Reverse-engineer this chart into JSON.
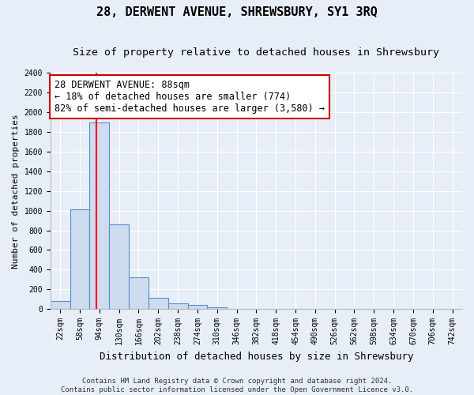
{
  "title": "28, DERWENT AVENUE, SHREWSBURY, SY1 3RQ",
  "subtitle": "Size of property relative to detached houses in Shrewsbury",
  "xlabel": "Distribution of detached houses by size in Shrewsbury",
  "ylabel": "Number of detached properties",
  "bin_labels": [
    "22sqm",
    "58sqm",
    "94sqm",
    "130sqm",
    "166sqm",
    "202sqm",
    "238sqm",
    "274sqm",
    "310sqm",
    "346sqm",
    "382sqm",
    "418sqm",
    "454sqm",
    "490sqm",
    "526sqm",
    "562sqm",
    "598sqm",
    "634sqm",
    "670sqm",
    "706sqm",
    "742sqm"
  ],
  "bin_values": [
    80,
    1010,
    1900,
    860,
    320,
    110,
    55,
    40,
    20,
    5,
    5,
    0,
    0,
    0,
    0,
    0,
    0,
    0,
    0,
    0,
    0
  ],
  "bar_color": "#cddcef",
  "bar_edge_color": "#5b8dc8",
  "property_sqm": 88,
  "annotation_line1": "28 DERWENT AVENUE: 88sqm",
  "annotation_line2": "← 18% of detached houses are smaller (774)",
  "annotation_line3": "82% of semi-detached houses are larger (3,580) →",
  "annotation_box_color": "#ffffff",
  "annotation_box_edge_color": "#cc0000",
  "ylim": [
    0,
    2400
  ],
  "yticks": [
    0,
    200,
    400,
    600,
    800,
    1000,
    1200,
    1400,
    1600,
    1800,
    2000,
    2200,
    2400
  ],
  "footer_line1": "Contains HM Land Registry data © Crown copyright and database right 2024.",
  "footer_line2": "Contains public sector information licensed under the Open Government Licence v3.0.",
  "background_color": "#e8eef8",
  "plot_bg_color": "#e8eef8",
  "grid_color": "#ffffff",
  "title_fontsize": 11,
  "subtitle_fontsize": 9.5,
  "xlabel_fontsize": 9,
  "ylabel_fontsize": 8,
  "tick_fontsize": 7,
  "annotation_fontsize": 8.5,
  "footer_fontsize": 6.5
}
